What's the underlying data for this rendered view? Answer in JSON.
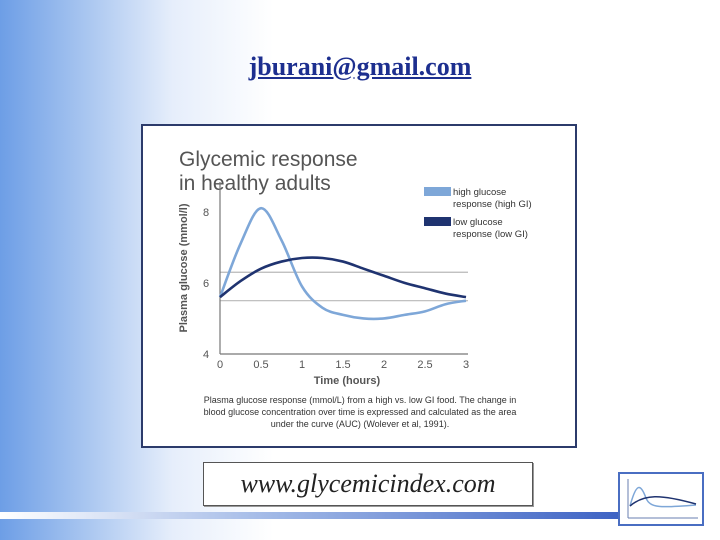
{
  "header": {
    "email": "jburani@gmail.com"
  },
  "footer": {
    "url": "www.glycemicindex.com"
  },
  "chart_data": {
    "type": "line",
    "title": "Glycemic response in healthy adults",
    "title_lines": [
      "Glycemic response",
      "in healthy adults"
    ],
    "xlabel": "Time (hours)",
    "ylabel": "Plasma glucose (mmol/l)",
    "xlim": [
      0,
      3
    ],
    "ylim": [
      4,
      8.5
    ],
    "x_ticks": [
      "0",
      "0.5",
      "1",
      "1.5",
      "2",
      "2.5",
      "3"
    ],
    "y_ticks": [
      "4",
      "6",
      "8"
    ],
    "reference_lines_y": [
      6.3,
      5.5
    ],
    "grid": false,
    "legend_position": "top-right",
    "series": [
      {
        "name": "high glucose response (high GI)",
        "legend_lines": [
          "high glucose",
          "response (high GI)"
        ],
        "color": "#7ea7d8",
        "x": [
          0,
          0.25,
          0.5,
          0.75,
          1.0,
          1.25,
          1.5,
          1.75,
          2.0,
          2.25,
          2.5,
          2.75,
          3.0
        ],
        "y": [
          5.6,
          7.1,
          8.1,
          7.2,
          5.9,
          5.3,
          5.1,
          5.0,
          5.0,
          5.1,
          5.2,
          5.4,
          5.5
        ]
      },
      {
        "name": "low glucose response (low GI)",
        "legend_lines": [
          "low glucose",
          "response (low GI)"
        ],
        "color": "#1f3370",
        "x": [
          0,
          0.25,
          0.5,
          0.75,
          1.0,
          1.25,
          1.5,
          1.75,
          2.0,
          2.25,
          2.5,
          2.75,
          3.0
        ],
        "y": [
          5.6,
          6.05,
          6.4,
          6.6,
          6.7,
          6.7,
          6.6,
          6.4,
          6.2,
          6.0,
          5.85,
          5.7,
          5.6
        ]
      }
    ],
    "caption": "Plasma glucose response (mmol/L) from a high vs. low GI food. The change in blood glucose concentration over time is expressed and calculated as the area under the curve (AUC) (Wolever et al, 1991)."
  }
}
